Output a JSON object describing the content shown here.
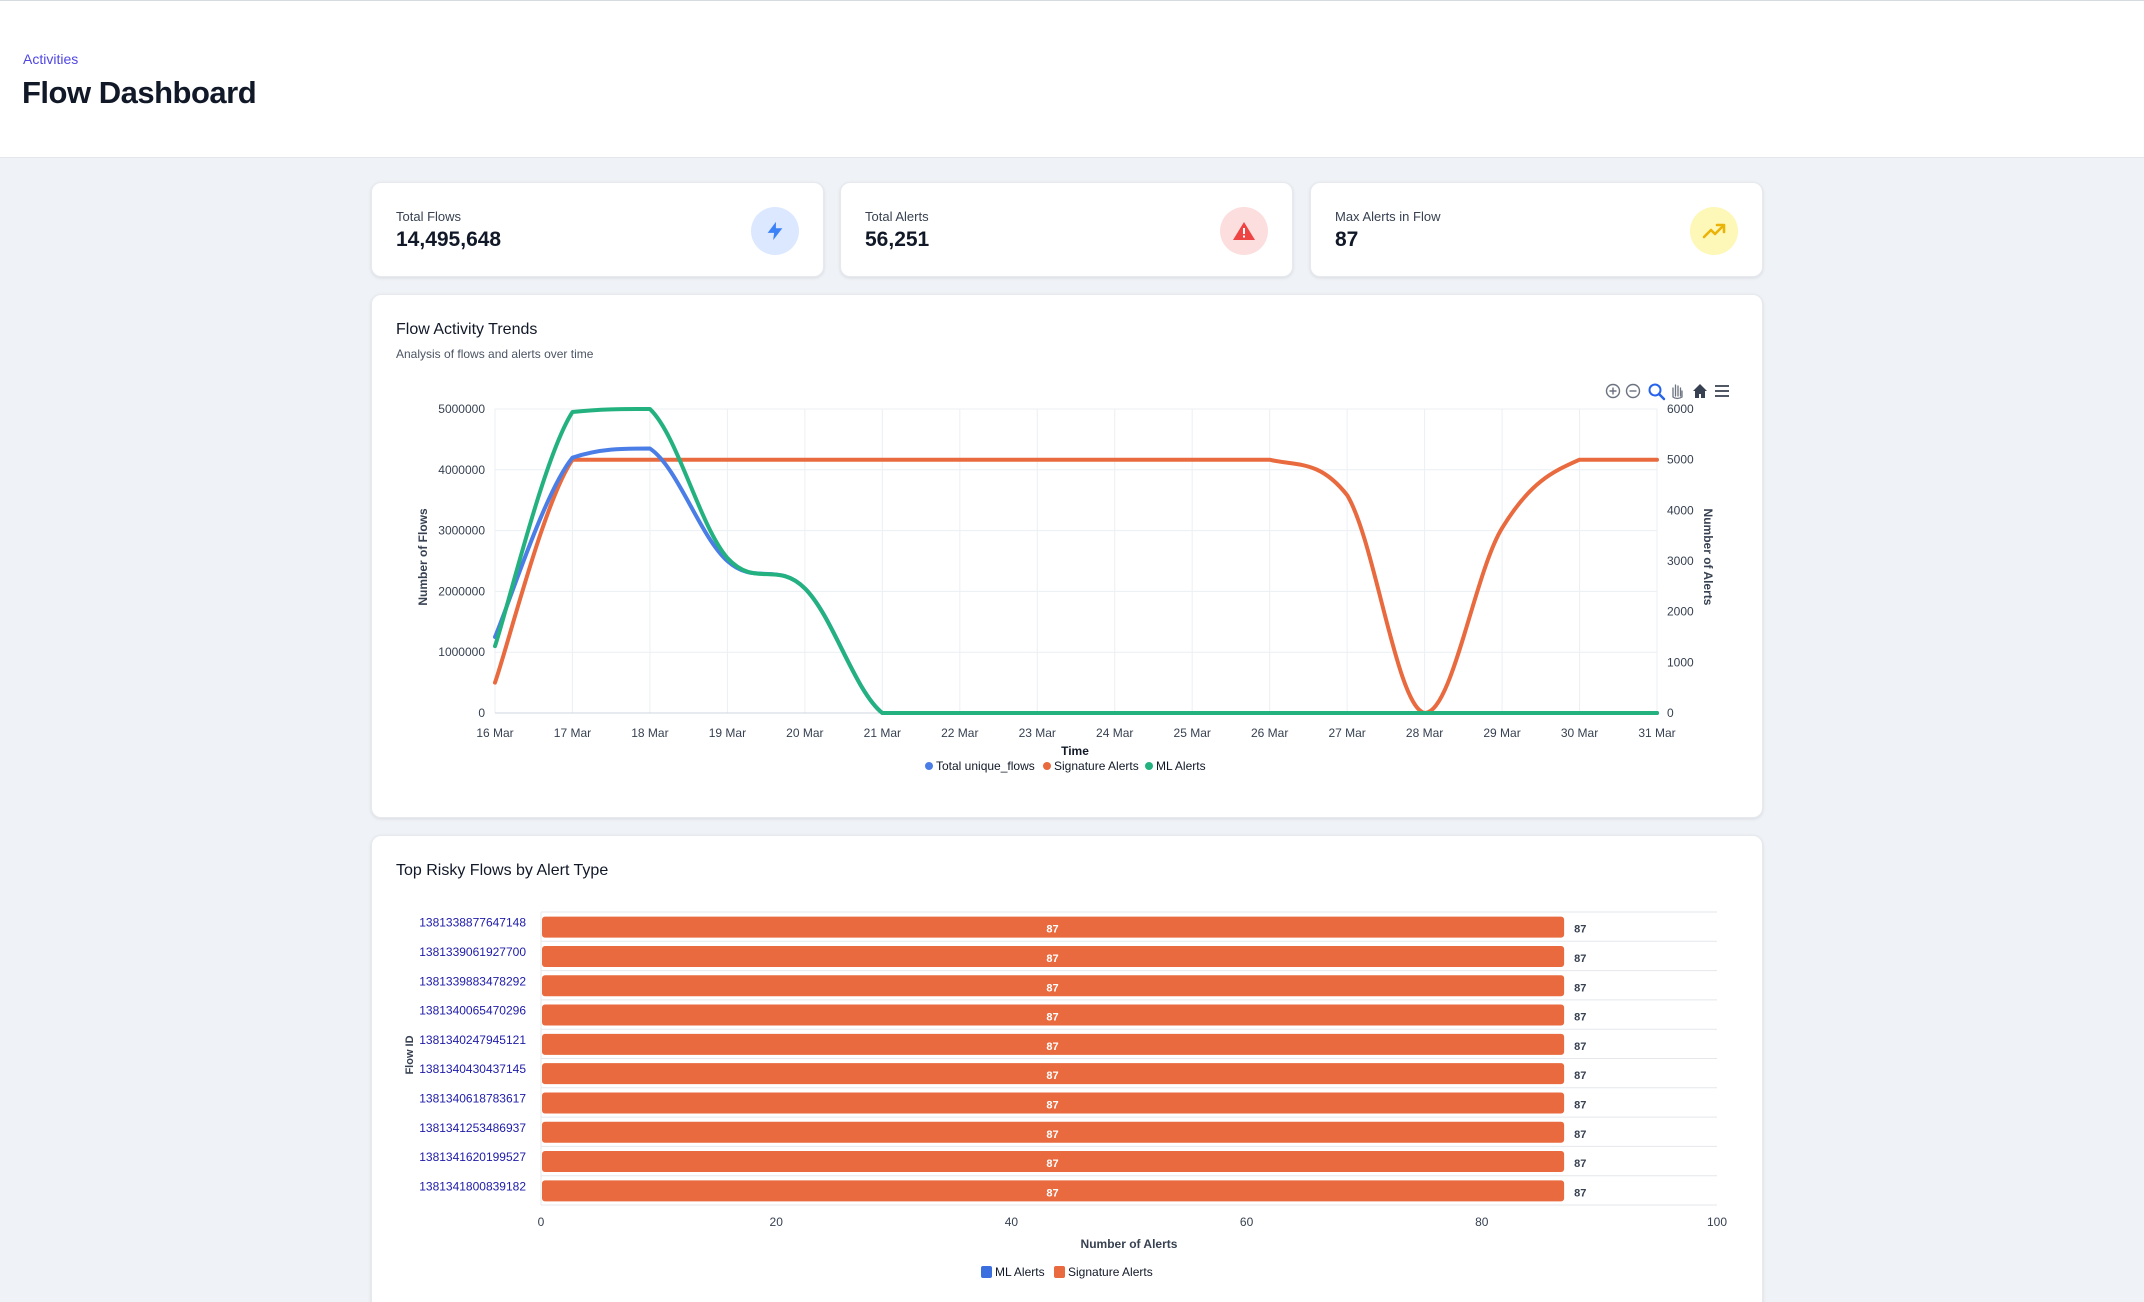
{
  "header": {
    "breadcrumb": "Activities",
    "title": "Flow Dashboard"
  },
  "stats": [
    {
      "label": "Total Flows",
      "value": "14,495,648",
      "icon": "bolt-icon",
      "icon_bg": "#dbe8ff",
      "icon_color": "#3b82f6"
    },
    {
      "label": "Total Alerts",
      "value": "56,251",
      "icon": "warning-triangle-icon",
      "icon_bg": "#fcdede",
      "icon_color": "#ef4444"
    },
    {
      "label": "Max Alerts in Flow",
      "value": "87",
      "icon": "trending-up-icon",
      "icon_bg": "#fdf7b8",
      "icon_color": "#eab308"
    }
  ],
  "trend_panel": {
    "title": "Flow Activity Trends",
    "subtitle": "Analysis of flows and alerts over time"
  },
  "toolbar": [
    "zoom-in-icon",
    "zoom-out-icon",
    "selection-zoom-icon",
    "pan-hand-icon",
    "home-reset-icon",
    "menu-icon"
  ],
  "risky_panel": {
    "title": "Top Risky Flows by Alert Type"
  },
  "colors": {
    "flows": "#4a7de6",
    "signature": "#e86a3e",
    "ml": "#23b27f",
    "ml_legend": "#3b6fe0",
    "bar": "#e86a3e",
    "link": "#1d1aa8"
  },
  "chart_data": [
    {
      "type": "line",
      "x": [
        "16 Mar",
        "17 Mar",
        "18 Mar",
        "19 Mar",
        "20 Mar",
        "21 Mar",
        "22 Mar",
        "23 Mar",
        "24 Mar",
        "25 Mar",
        "26 Mar",
        "27 Mar",
        "28 Mar",
        "29 Mar",
        "30 Mar",
        "31 Mar"
      ],
      "xlabel": "Time",
      "ylabel": "Number of Flows",
      "y2label": "Number of Alerts",
      "ylim": [
        0,
        5000000
      ],
      "y_ticks": [
        "5000000",
        "4000000",
        "3000000",
        "2000000",
        "1000000",
        "0"
      ],
      "y2lim": [
        0,
        6000
      ],
      "y2_ticks": [
        "6000",
        "5000",
        "4000",
        "3000",
        "2000",
        "1000",
        "0"
      ],
      "series": [
        {
          "name": "Total unique_flows",
          "axis": "left",
          "values": [
            1250000,
            4200000,
            4350000,
            2500000,
            2050000,
            0,
            0,
            0,
            0,
            0,
            0,
            0,
            0,
            0,
            0,
            0
          ]
        },
        {
          "name": "Signature Alerts",
          "axis": "right",
          "values": [
            600,
            5000,
            5000,
            5000,
            5000,
            5000,
            5000,
            5000,
            5000,
            5000,
            5000,
            4300,
            0,
            3650,
            5000,
            5000
          ]
        },
        {
          "name": "ML Alerts",
          "axis": "left",
          "values": [
            1100000,
            4950000,
            5000000,
            2550000,
            2050000,
            0,
            0,
            0,
            0,
            0,
            0,
            0,
            0,
            0,
            0,
            0
          ]
        }
      ],
      "legend": "bottom-center",
      "grid": true
    },
    {
      "type": "bar",
      "orientation": "horizontal",
      "stacked": true,
      "categories": [
        "1381338877647148",
        "1381339061927700",
        "1381339883478292",
        "1381340065470296",
        "1381340247945121",
        "1381340430437145",
        "1381340618783617",
        "1381341253486937",
        "1381341620199527",
        "1381341800839182"
      ],
      "series": [
        {
          "name": "ML Alerts",
          "values": [
            0,
            0,
            0,
            0,
            0,
            0,
            0,
            0,
            0,
            0
          ]
        },
        {
          "name": "Signature Alerts",
          "values": [
            87,
            87,
            87,
            87,
            87,
            87,
            87,
            87,
            87,
            87
          ]
        }
      ],
      "totals": [
        87,
        87,
        87,
        87,
        87,
        87,
        87,
        87,
        87,
        87
      ],
      "xlabel": "Number of Alerts",
      "ylabel": "Flow ID",
      "xlim": [
        0,
        100
      ],
      "x_ticks": [
        "0",
        "20",
        "40",
        "60",
        "80",
        "100"
      ],
      "legend": "bottom-center",
      "grid": true
    }
  ]
}
